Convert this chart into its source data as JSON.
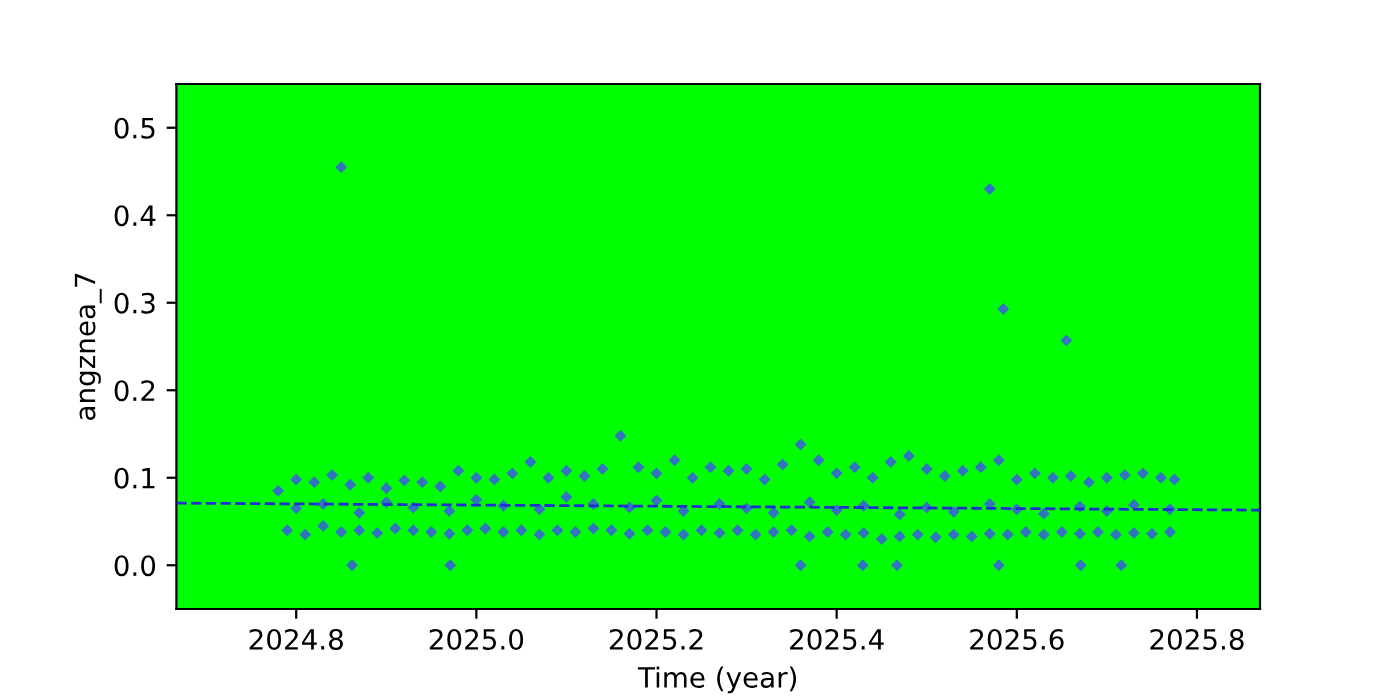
{
  "chart_data": {
    "type": "scatter",
    "xlabel": "Time (year)",
    "ylabel": "angznea_7",
    "xlim": [
      2024.667,
      2025.87
    ],
    "ylim": [
      -0.05,
      0.55
    ],
    "xticks": [
      {
        "value": 2024.8,
        "label": "2024.8"
      },
      {
        "value": 2025.0,
        "label": "2025.0"
      },
      {
        "value": 2025.2,
        "label": "2025.2"
      },
      {
        "value": 2025.4,
        "label": "2025.4"
      },
      {
        "value": 2025.6,
        "label": "2025.6"
      },
      {
        "value": 2025.8,
        "label": "2025.8"
      }
    ],
    "yticks": [
      {
        "value": 0.0,
        "label": "0.0"
      },
      {
        "value": 0.1,
        "label": "0.1"
      },
      {
        "value": 0.2,
        "label": "0.2"
      },
      {
        "value": 0.3,
        "label": "0.3"
      },
      {
        "value": 0.4,
        "label": "0.4"
      },
      {
        "value": 0.5,
        "label": "0.5"
      }
    ],
    "grid": false,
    "series": [
      {
        "marker": "diamond",
        "color": "#3274c0",
        "x": [
          2024.78,
          2024.8,
          2024.82,
          2024.84,
          2024.86,
          2024.88,
          2024.9,
          2024.92,
          2024.94,
          2024.96,
          2024.98,
          2025.0,
          2025.02,
          2025.04,
          2025.06,
          2025.08,
          2025.1,
          2025.12,
          2025.14,
          2025.16,
          2025.18,
          2025.2,
          2025.22,
          2025.24,
          2025.26,
          2025.28,
          2025.3,
          2025.32,
          2025.34,
          2025.36,
          2025.38,
          2025.4,
          2025.42,
          2025.44,
          2025.46,
          2025.48,
          2025.5,
          2025.52,
          2025.54,
          2025.56,
          2025.58,
          2025.6,
          2025.62,
          2025.64,
          2025.66,
          2025.68,
          2025.7,
          2025.72,
          2025.74,
          2025.76,
          2025.775,
          2024.79,
          2024.81,
          2024.83,
          2024.85,
          2024.87,
          2024.89,
          2024.91,
          2024.93,
          2024.95,
          2024.97,
          2024.99,
          2025.01,
          2025.03,
          2025.05,
          2025.07,
          2025.09,
          2025.11,
          2025.13,
          2025.15,
          2025.17,
          2025.19,
          2025.21,
          2025.23,
          2025.25,
          2025.27,
          2025.29,
          2025.31,
          2025.33,
          2025.35,
          2025.37,
          2025.39,
          2025.41,
          2025.43,
          2025.45,
          2025.47,
          2025.49,
          2025.51,
          2025.53,
          2025.55,
          2025.57,
          2025.59,
          2025.61,
          2025.63,
          2025.65,
          2025.67,
          2025.69,
          2025.71,
          2025.73,
          2025.75,
          2025.77,
          2024.8,
          2024.83,
          2024.87,
          2024.9,
          2024.93,
          2024.97,
          2025.0,
          2025.03,
          2025.07,
          2025.1,
          2025.13,
          2025.17,
          2025.2,
          2025.23,
          2025.27,
          2025.3,
          2025.33,
          2025.37,
          2025.4,
          2025.43,
          2025.47,
          2025.5,
          2025.53,
          2025.57,
          2025.6,
          2025.63,
          2025.67,
          2025.7,
          2025.73,
          2025.77,
          2024.85,
          2025.57,
          2025.585,
          2025.655,
          2024.862,
          2024.971,
          2025.36,
          2025.429,
          2025.467,
          2025.58,
          2025.671,
          2025.716
        ],
        "values": [
          0.085,
          0.098,
          0.095,
          0.103,
          0.092,
          0.1,
          0.088,
          0.097,
          0.095,
          0.09,
          0.108,
          0.1,
          0.098,
          0.105,
          0.118,
          0.1,
          0.108,
          0.102,
          0.11,
          0.148,
          0.112,
          0.105,
          0.12,
          0.1,
          0.112,
          0.108,
          0.11,
          0.098,
          0.115,
          0.138,
          0.12,
          0.105,
          0.112,
          0.1,
          0.118,
          0.125,
          0.11,
          0.102,
          0.108,
          0.112,
          0.12,
          0.098,
          0.105,
          0.1,
          0.102,
          0.095,
          0.1,
          0.103,
          0.105,
          0.1,
          0.098,
          0.04,
          0.035,
          0.045,
          0.038,
          0.04,
          0.037,
          0.042,
          0.04,
          0.038,
          0.036,
          0.04,
          0.042,
          0.038,
          0.04,
          0.035,
          0.04,
          0.038,
          0.042,
          0.04,
          0.036,
          0.04,
          0.038,
          0.035,
          0.04,
          0.037,
          0.04,
          0.035,
          0.038,
          0.04,
          0.033,
          0.038,
          0.035,
          0.037,
          0.03,
          0.033,
          0.035,
          0.032,
          0.035,
          0.033,
          0.036,
          0.035,
          0.038,
          0.035,
          0.038,
          0.036,
          0.038,
          0.035,
          0.037,
          0.036,
          0.038,
          0.065,
          0.07,
          0.06,
          0.072,
          0.066,
          0.062,
          0.075,
          0.068,
          0.064,
          0.078,
          0.07,
          0.066,
          0.074,
          0.062,
          0.07,
          0.065,
          0.06,
          0.072,
          0.063,
          0.068,
          0.058,
          0.066,
          0.061,
          0.07,
          0.064,
          0.059,
          0.067,
          0.062,
          0.069,
          0.064,
          0.455,
          0.43,
          0.293,
          0.257,
          0.0,
          0.0,
          0.0,
          0.0,
          0.0,
          0.0,
          0.0,
          0.0
        ]
      },
      {
        "type": "line",
        "color": "#1f2fd0",
        "line_style": "dashed",
        "x": [
          2024.667,
          2025.87
        ],
        "values": [
          0.071,
          0.063
        ]
      }
    ]
  }
}
